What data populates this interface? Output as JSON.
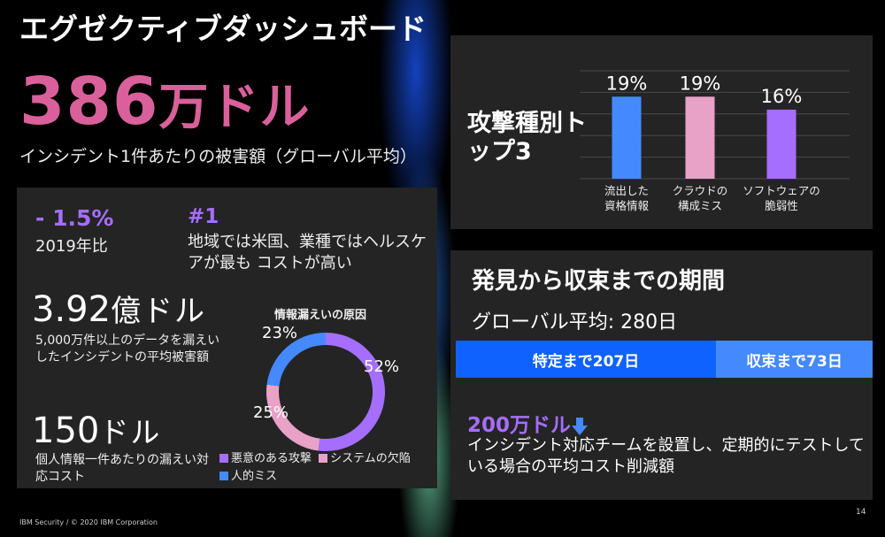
{
  "title": "エグゼクティブダッシュボード",
  "headline": {
    "value": "386",
    "unit": "万ドル",
    "caption": "インシデント1件あたりの被害額（グローバル平均）"
  },
  "left_panel": {
    "change": {
      "value": "- 1.5%",
      "caption": "2019年比"
    },
    "rank": {
      "value": "#1",
      "caption": "地域では米国、業種ではヘルスケアが最も コストが高い"
    },
    "mega": {
      "value": "3.92",
      "unit": "億ドル",
      "caption": "5,000万件以上のデータを漏えいしたインシデントの平均被害額"
    },
    "per_record": {
      "value": "150",
      "unit": "ドル",
      "caption": "個人情報一件あたりの漏えい対応コスト"
    },
    "donut": {
      "title": "情報漏えいの原因",
      "slices": [
        {
          "name": "悪意のある攻撃",
          "value": 52,
          "label": "52%",
          "color": "#a56eff"
        },
        {
          "name": "システムの欠陥",
          "value": 25,
          "label": "25%",
          "color": "#e8a2c8"
        },
        {
          "name": "人的ミス",
          "value": 23,
          "label": "23%",
          "color": "#4589ff"
        }
      ]
    }
  },
  "attack_panel": {
    "title": "攻撃種別トップ3",
    "chart_data": {
      "type": "bar",
      "title": "",
      "xlabel": "",
      "ylabel": "",
      "ylim": [
        0,
        25
      ],
      "grid": true,
      "categories": [
        [
          "流出した",
          "資格情報"
        ],
        [
          "クラウドの",
          "構成ミス"
        ],
        [
          "ソフトウェアの",
          "脆弱性"
        ]
      ],
      "values": [
        19,
        19,
        16
      ],
      "labels": [
        "19%",
        "19%",
        "16%"
      ],
      "colors": [
        "#4589ff",
        "#e8a2c8",
        "#a56eff"
      ]
    }
  },
  "detect_panel": {
    "title": "発見から収束までの期間",
    "average": "グローバル平均: 280日",
    "segments": [
      {
        "label": "特定まで207日",
        "days": 207,
        "color": "#0f62fe"
      },
      {
        "label": "収束まで73日",
        "days": 73,
        "color": "#4589ff"
      }
    ],
    "saving": {
      "value": "200万ドル",
      "caption": "インシデント対応チームを設置し、定期的にテストしている場合の平均コスト削減額"
    }
  },
  "footer": "IBM Security / © 2020 IBM Corporation",
  "page_number": "14"
}
